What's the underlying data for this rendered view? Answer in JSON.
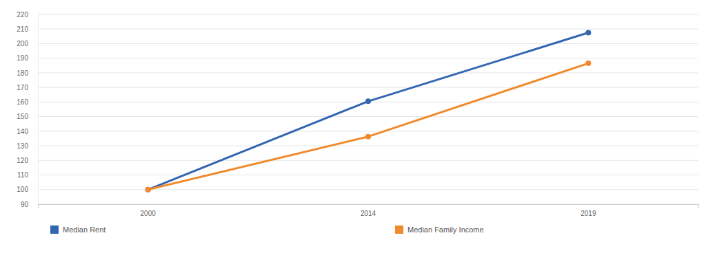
{
  "chart_data": {
    "type": "line",
    "categories": [
      "2000",
      "2014",
      "2019"
    ],
    "series": [
      {
        "name": "Median Rent",
        "color": "#3366b1",
        "values": [
          100,
          160.5,
          207.5
        ]
      },
      {
        "name": "Median Family Income",
        "color": "#f08a2c",
        "values": [
          100,
          136.3,
          186.5
        ]
      }
    ],
    "ylim": [
      90,
      220
    ],
    "yticks": [
      90,
      100,
      110,
      120,
      130,
      140,
      150,
      160,
      170,
      180,
      190,
      200,
      210,
      220
    ],
    "grid": true,
    "legend": "bottom",
    "marker": "circle"
  }
}
